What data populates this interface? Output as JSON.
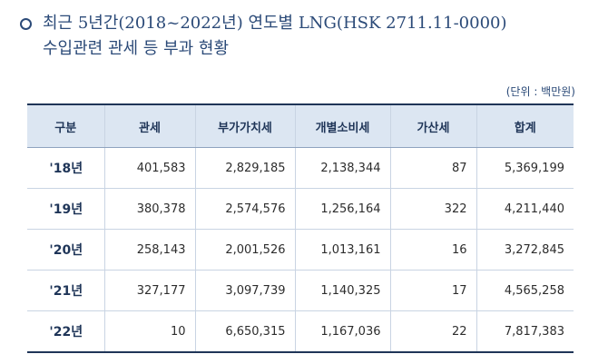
{
  "title": {
    "line1": "최근 5년간(2018~2022년) 연도별 LNG(HSK 2711.11-0000)",
    "line2": "수입관련 관세 등 부과 현황"
  },
  "unit_note": "(단위 : 백만원)",
  "table": {
    "headers": [
      "구분",
      "관세",
      "부가가치세",
      "개별소비세",
      "가산세",
      "합계"
    ],
    "rows": [
      {
        "year": "'18년",
        "duty": "401,583",
        "vat": "2,829,185",
        "individual_consumption_tax": "2,138,344",
        "penalty_tax": "87",
        "total": "5,369,199"
      },
      {
        "year": "'19년",
        "duty": "380,378",
        "vat": "2,574,576",
        "individual_consumption_tax": "1,256,164",
        "penalty_tax": "322",
        "total": "4,211,440"
      },
      {
        "year": "'20년",
        "duty": "258,143",
        "vat": "2,001,526",
        "individual_consumption_tax": "1,013,161",
        "penalty_tax": "16",
        "total": "3,272,845"
      },
      {
        "year": "'21년",
        "duty": "327,177",
        "vat": "3,097,739",
        "individual_consumption_tax": "1,140,325",
        "penalty_tax": "17",
        "total": "4,565,258"
      },
      {
        "year": "'22년",
        "duty": "10",
        "vat": "6,650,315",
        "individual_consumption_tax": "1,167,036",
        "penalty_tax": "22",
        "total": "7,817,383"
      }
    ]
  }
}
